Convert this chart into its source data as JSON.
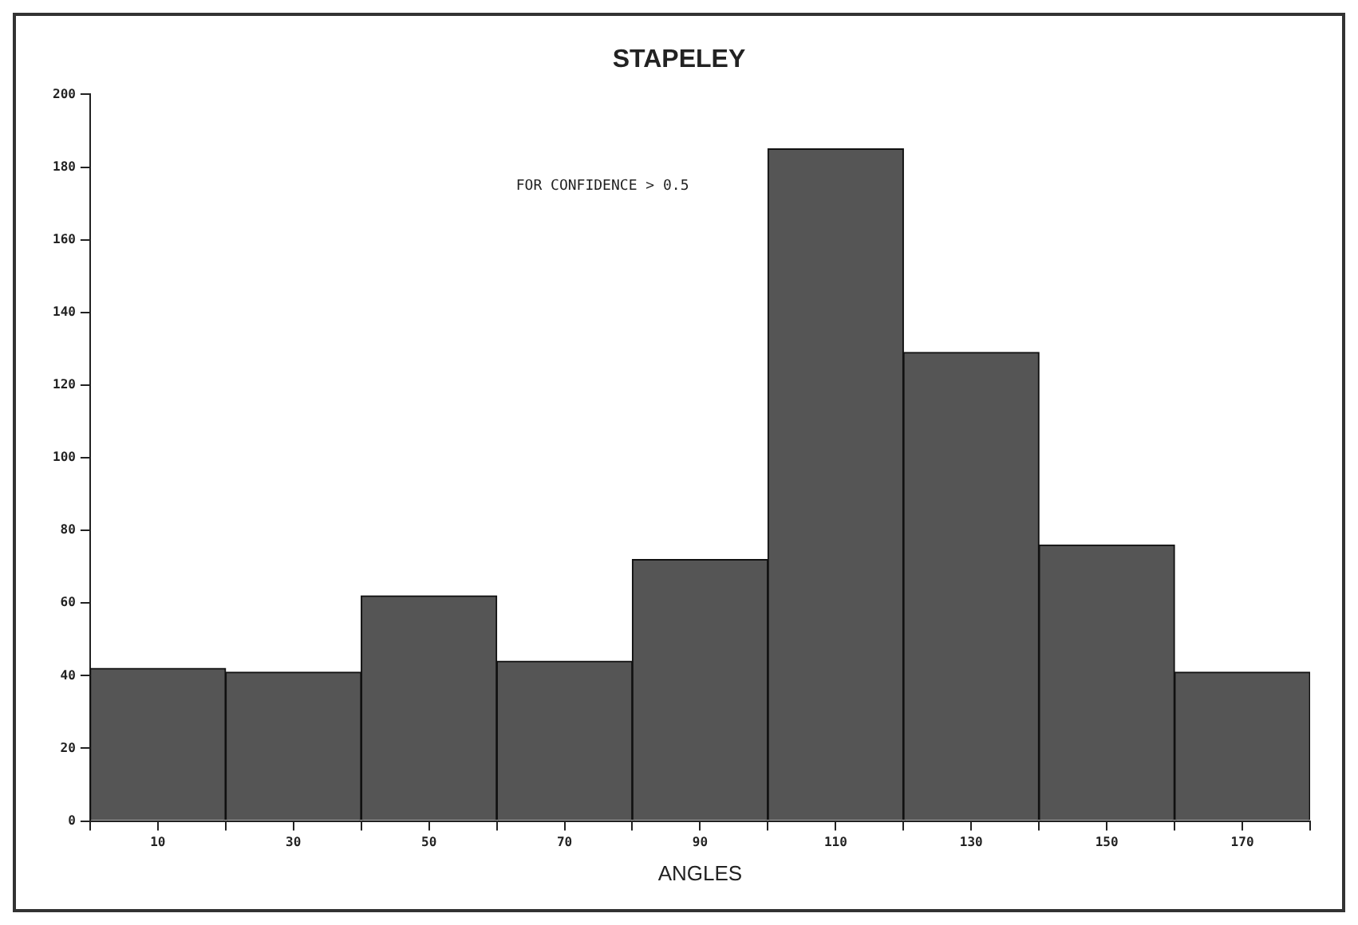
{
  "chart_data": {
    "type": "histogram",
    "title": "STAPELEY",
    "xlabel": "ANGLES",
    "bins": [
      0,
      20,
      40,
      60,
      80,
      100,
      120,
      140,
      160,
      180
    ],
    "values": [
      42,
      41,
      62,
      44,
      72,
      185,
      129,
      76,
      41
    ],
    "color": "#555555",
    "xlim": [
      0,
      180
    ],
    "xticks": [
      {
        "value": 0,
        "label": null
      },
      10,
      {
        "value": 20,
        "label": null
      },
      30,
      {
        "value": 40,
        "label": null
      },
      50,
      {
        "value": 60,
        "label": null
      },
      70,
      {
        "value": 80,
        "label": null
      },
      90,
      {
        "value": 100,
        "label": null
      },
      110,
      {
        "value": 120,
        "label": null
      },
      130,
      {
        "value": 140,
        "label": null
      },
      150,
      {
        "value": 160,
        "label": null
      },
      170,
      {
        "value": 180,
        "label": null
      }
    ],
    "ylim": [
      0,
      200
    ],
    "yticks": [
      0,
      20,
      40,
      60,
      80,
      100,
      120,
      140,
      160,
      180,
      200
    ],
    "annotations": [
      "FOR CONFIDENCE > 0.5"
    ],
    "grid": false,
    "legend": false
  }
}
